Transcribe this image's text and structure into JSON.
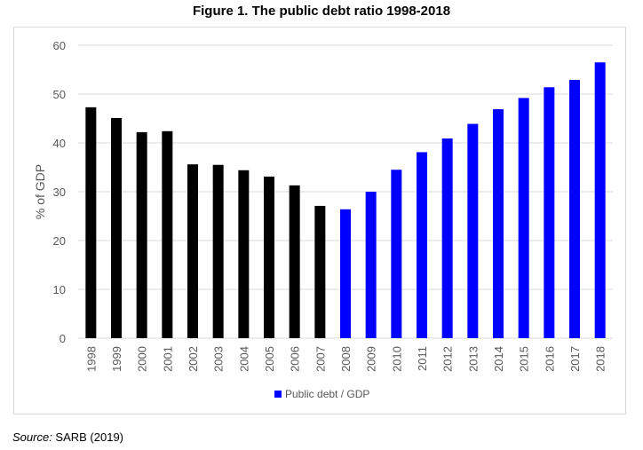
{
  "chart_data": {
    "type": "bar",
    "title": "Figure 1. The public debt ratio 1998-2018",
    "ylabel": "% of GDP",
    "xlabel": "",
    "ylim": [
      0,
      60
    ],
    "yticks": [
      0,
      10,
      20,
      30,
      40,
      50,
      60
    ],
    "grid": true,
    "legend": {
      "placement": "bottom",
      "entries": [
        "Public debt / GDP"
      ]
    },
    "categories": [
      "1998",
      "1999",
      "2000",
      "2001",
      "2002",
      "2003",
      "2004",
      "2005",
      "2006",
      "2007",
      "2008",
      "2009",
      "2010",
      "2011",
      "2012",
      "2013",
      "2014",
      "2015",
      "2016",
      "2017",
      "2018"
    ],
    "series": [
      {
        "name": "Public debt / GDP",
        "values": [
          47.3,
          45.1,
          42.2,
          42.4,
          35.6,
          35.5,
          34.4,
          33.1,
          31.3,
          27.1,
          26.4,
          30.0,
          34.5,
          38.1,
          40.9,
          43.9,
          46.9,
          49.2,
          51.4,
          52.9,
          56.5
        ]
      }
    ],
    "bar_colors": {
      "historical": "#000000",
      "projected": "#0000ff"
    },
    "projected_from": "2008"
  },
  "source": {
    "label": "Source:",
    "text": " SARB (2019)"
  }
}
